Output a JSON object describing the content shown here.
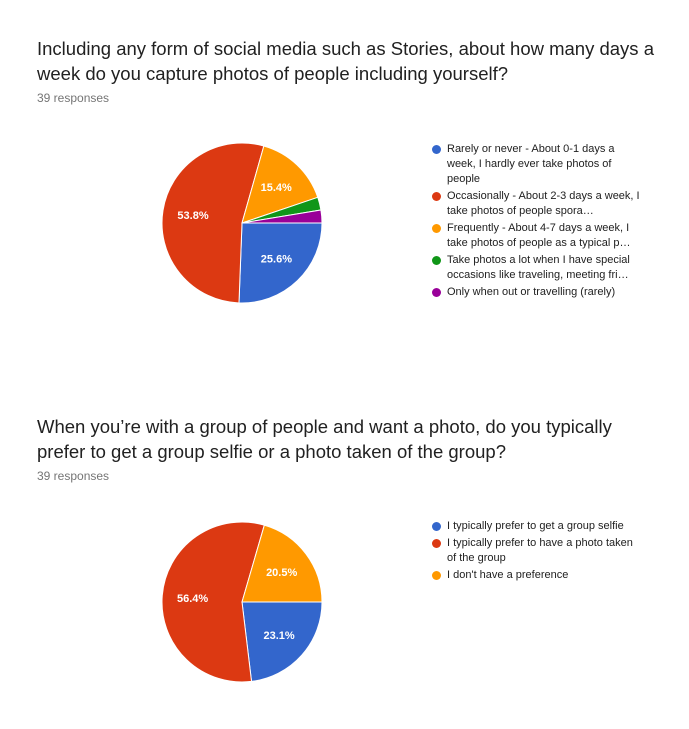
{
  "chart_data": [
    {
      "type": "pie",
      "title": "Including any form of social media such as Stories, about how many days a week do you capture photos of people including yourself?",
      "responses": "39 responses",
      "categories": [
        "Rarely or never - About 0-1 days a week, I hardly ever take photos of people",
        "Occasionally - About 2-3 days a week, I take photos of people spora…",
        "Frequently - About 4-7 days a week, I take photos of people as a typical p…",
        "Take photos a lot when I have special occasions like traveling, meeting fri…",
        "Only when out or travelling (rarely)"
      ],
      "values": [
        25.6,
        53.8,
        15.4,
        2.6,
        2.6
      ],
      "labels": [
        "25.6%",
        "53.8%",
        "15.4%",
        "",
        ""
      ],
      "colors": [
        "#3366cc",
        "#dc3912",
        "#ff9900",
        "#109618",
        "#990099"
      ],
      "legend_position": "right"
    },
    {
      "type": "pie",
      "title": "When you’re with a group of people and want a photo, do you typically prefer to get a group selfie or a photo taken of the group?",
      "responses": "39 responses",
      "categories": [
        "I typically prefer to get a group selfie",
        "I typically prefer to have a photo taken of the group",
        "I don't have a preference"
      ],
      "values": [
        23.1,
        56.4,
        20.5
      ],
      "labels": [
        "23.1%",
        "56.4%",
        "20.5%"
      ],
      "colors": [
        "#3366cc",
        "#dc3912",
        "#ff9900"
      ],
      "legend_position": "right"
    }
  ]
}
